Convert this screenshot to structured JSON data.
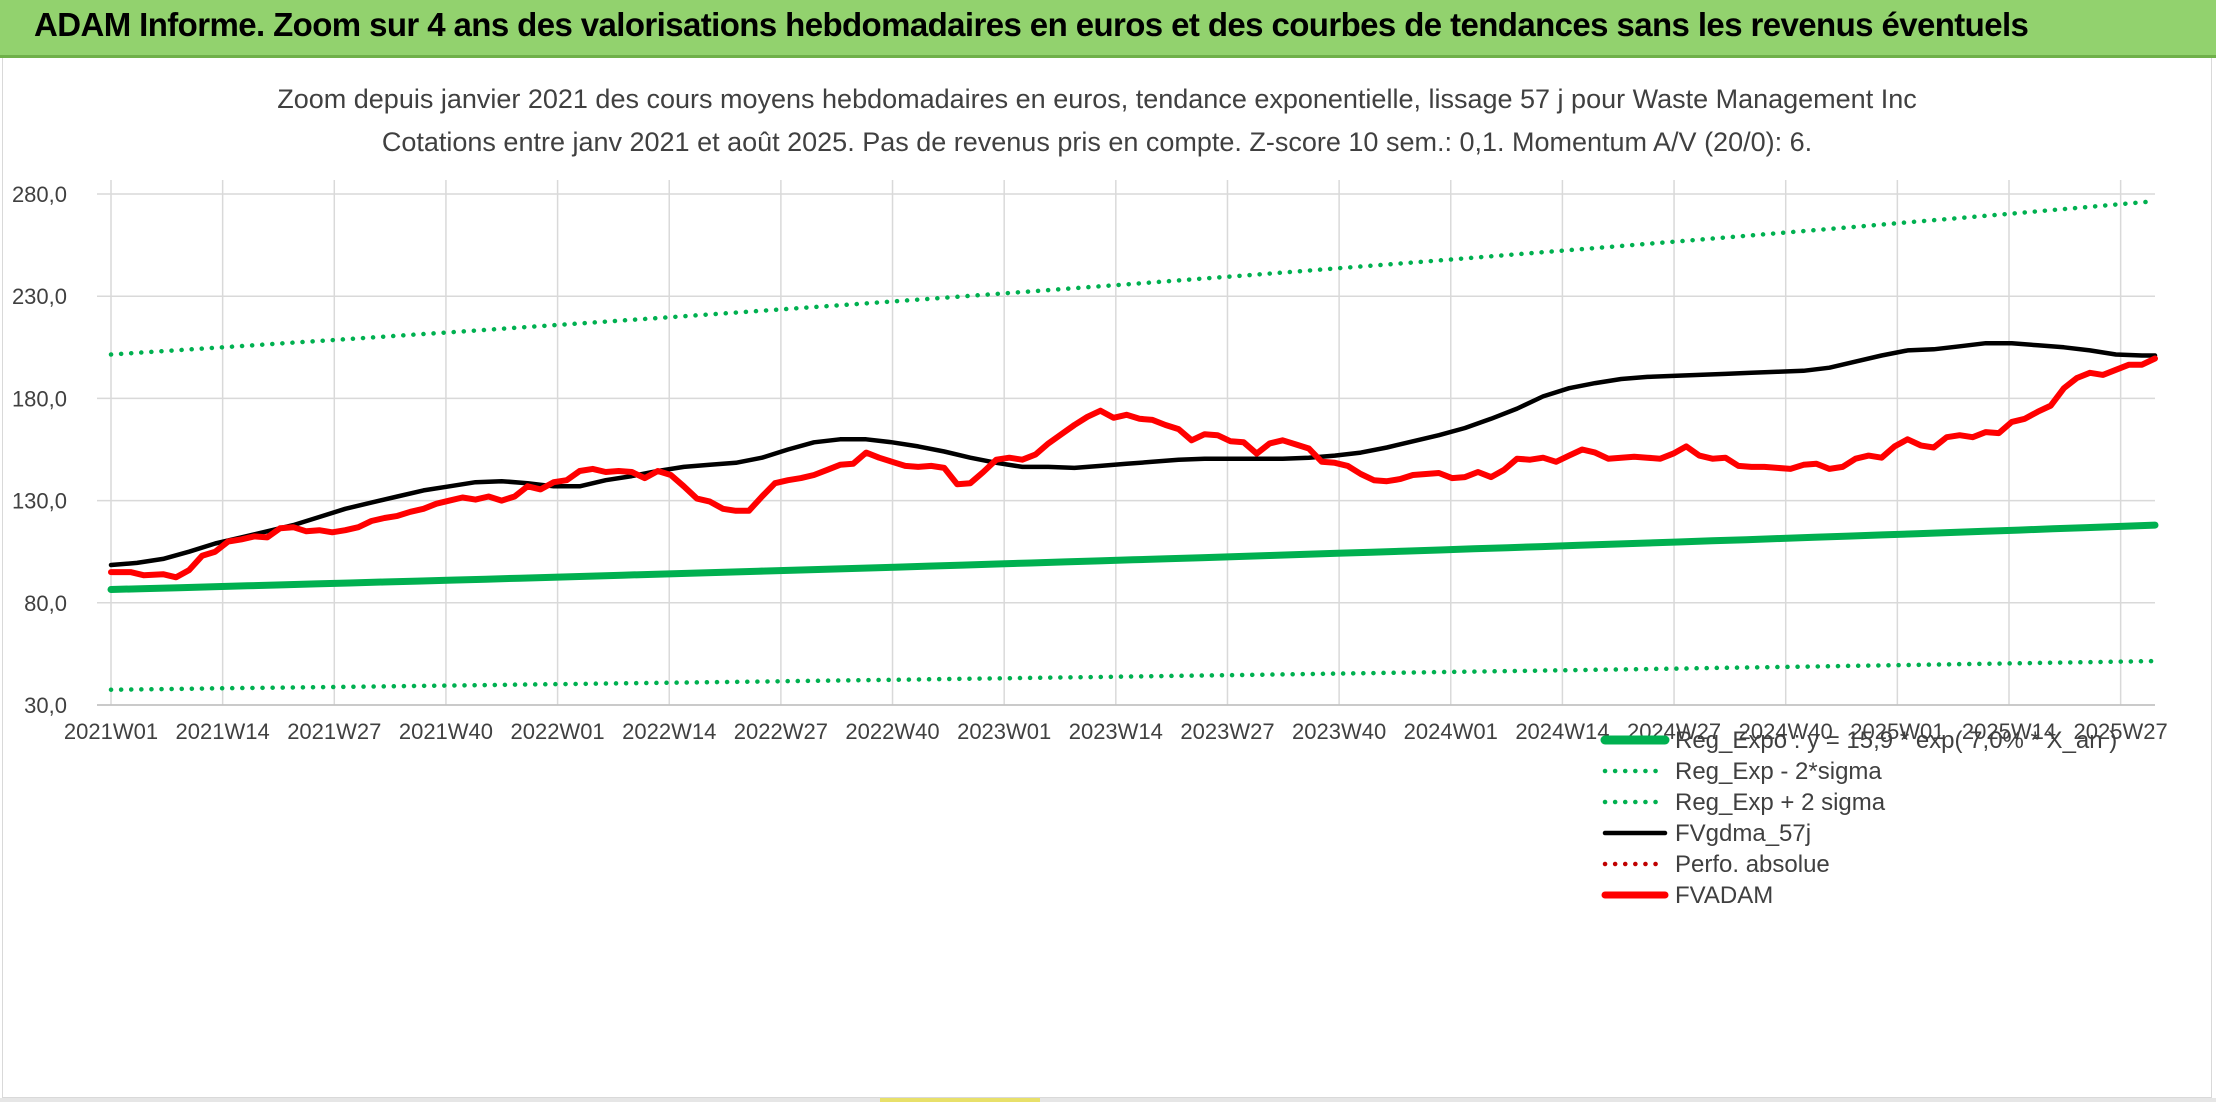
{
  "banner": {
    "title": "ADAM Informe. Zoom sur 4 ans des valorisations hebdomadaires en euros et des courbes de tendances sans les revenus éventuels",
    "color": "#92d26e"
  },
  "chart_data": {
    "type": "line",
    "title": "Zoom depuis janvier 2021 des cours moyens hebdomadaires en euros, tendance exponentielle, lissage 57 j pour Waste Management Inc",
    "subtitle": "Cotations entre janv 2021 et août 2025. Pas de revenus pris en compte. Z-score 10 sem.: 0,1. Momentum A/V (20/0): 6.",
    "xlabel": "",
    "ylabel": "",
    "ylim": [
      30,
      280
    ],
    "yticks": [
      "30,0",
      "80,0",
      "130,0",
      "180,0",
      "230,0",
      "280,0"
    ],
    "ytick_values": [
      30,
      80,
      130,
      180,
      230,
      280
    ],
    "xticks": [
      "2021W01",
      "2021W14",
      "2021W27",
      "2021W40",
      "2022W01",
      "2022W14",
      "2022W27",
      "2022W40",
      "2023W01",
      "2023W14",
      "2023W27",
      "2023W40",
      "2024W01",
      "2024W14",
      "2024W27",
      "2024W40",
      "2025W01",
      "2025W14",
      "2025W27"
    ],
    "xtick_index": [
      0,
      13,
      26,
      39,
      52,
      65,
      78,
      91,
      104,
      117,
      130,
      143,
      156,
      169,
      182,
      195,
      208,
      221,
      234
    ],
    "x_count": 239,
    "grid": true,
    "legend_position": "bottom-right",
    "series": [
      {
        "name": "Reg_Expo : y = 15,9 * exp( 7,0% *  X_an )",
        "style": "solid-thick",
        "color": "#00b050",
        "start": 86.5,
        "end": 118
      },
      {
        "name": "Reg_Exp - 2*sigma",
        "style": "dotted",
        "color": "#00b050",
        "start": 37.5,
        "end": 51.5
      },
      {
        "name": "Reg_Exp + 2 sigma",
        "style": "dotted",
        "color": "#00b050",
        "start": 201.5,
        "end": 276.5
      },
      {
        "name": "FVgdma_57j",
        "style": "solid",
        "color": "#000000",
        "points": [
          [
            0,
            98.5
          ],
          [
            4,
            99.5
          ],
          [
            8,
            101.5
          ],
          [
            12,
            105
          ],
          [
            16,
            109
          ],
          [
            20,
            112
          ],
          [
            24,
            115
          ],
          [
            28,
            118
          ],
          [
            32,
            122
          ],
          [
            36,
            126
          ],
          [
            40,
            129
          ],
          [
            44,
            132
          ],
          [
            48,
            135
          ],
          [
            52,
            137
          ],
          [
            56,
            139
          ],
          [
            60,
            139.5
          ],
          [
            64,
            138.5
          ],
          [
            68,
            137
          ],
          [
            72,
            137
          ],
          [
            76,
            140
          ],
          [
            80,
            142
          ],
          [
            84,
            144.5
          ],
          [
            88,
            146.5
          ],
          [
            92,
            147.5
          ],
          [
            96,
            148.5
          ],
          [
            100,
            151
          ],
          [
            104,
            155
          ],
          [
            108,
            158.5
          ],
          [
            112,
            160
          ],
          [
            116,
            160
          ],
          [
            120,
            158.5
          ],
          [
            124,
            156.5
          ],
          [
            128,
            154
          ],
          [
            132,
            151
          ],
          [
            136,
            148.5
          ],
          [
            140,
            146.5
          ],
          [
            144,
            146.5
          ],
          [
            148,
            146
          ],
          [
            152,
            147
          ],
          [
            156,
            148
          ],
          [
            160,
            149
          ],
          [
            164,
            150
          ],
          [
            168,
            150.5
          ],
          [
            172,
            150.5
          ],
          [
            176,
            150.5
          ],
          [
            180,
            150.5
          ],
          [
            184,
            151
          ],
          [
            188,
            152
          ],
          [
            192,
            153.5
          ],
          [
            196,
            156
          ],
          [
            200,
            159
          ],
          [
            204,
            162
          ],
          [
            208,
            165.5
          ],
          [
            212,
            170
          ],
          [
            216,
            175
          ],
          [
            220,
            181
          ],
          [
            224,
            185
          ],
          [
            228,
            187.5
          ],
          [
            232,
            189.5
          ],
          [
            236,
            190.5
          ],
          [
            240,
            191
          ],
          [
            244,
            191.5
          ],
          [
            248,
            192
          ],
          [
            252,
            192.5
          ],
          [
            256,
            193
          ],
          [
            260,
            193.5
          ],
          [
            264,
            195
          ],
          [
            268,
            198
          ],
          [
            272,
            201
          ],
          [
            276,
            203.5
          ],
          [
            280,
            204
          ],
          [
            284,
            205.5
          ],
          [
            288,
            207
          ],
          [
            292,
            207
          ],
          [
            296,
            206
          ],
          [
            300,
            205
          ],
          [
            304,
            203.5
          ],
          [
            308,
            201.5
          ],
          [
            312,
            201
          ],
          [
            314,
            201
          ]
        ]
      },
      {
        "name": "Perfo. absolue",
        "style": "dotted",
        "color": "#c00000"
      },
      {
        "name": "FVADAM",
        "style": "solid-thick",
        "color": "#ff0000",
        "points": [
          [
            0,
            95
          ],
          [
            3,
            95
          ],
          [
            5,
            93.5
          ],
          [
            8,
            94
          ],
          [
            10,
            92.5
          ],
          [
            12,
            96
          ],
          [
            14,
            103
          ],
          [
            16,
            105
          ],
          [
            18,
            110
          ],
          [
            20,
            111
          ],
          [
            22,
            112.5
          ],
          [
            24,
            112
          ],
          [
            26,
            116.5
          ],
          [
            28,
            117
          ],
          [
            30,
            115
          ],
          [
            32,
            115.5
          ],
          [
            34,
            114.5
          ],
          [
            36,
            115.5
          ],
          [
            38,
            117
          ],
          [
            40,
            120
          ],
          [
            42,
            121.5
          ],
          [
            44,
            122.5
          ],
          [
            46,
            124.5
          ],
          [
            48,
            126
          ],
          [
            50,
            128.5
          ],
          [
            52,
            130
          ],
          [
            54,
            131.5
          ],
          [
            56,
            130.5
          ],
          [
            58,
            132
          ],
          [
            60,
            130
          ],
          [
            62,
            132
          ],
          [
            64,
            137
          ],
          [
            66,
            135.5
          ],
          [
            68,
            139
          ],
          [
            70,
            140
          ],
          [
            72,
            144.5
          ],
          [
            74,
            145.5
          ],
          [
            76,
            144
          ],
          [
            78,
            144.5
          ],
          [
            80,
            144
          ],
          [
            82,
            141
          ],
          [
            84,
            144.5
          ],
          [
            86,
            142.5
          ],
          [
            88,
            137
          ],
          [
            90,
            131
          ],
          [
            92,
            129.5
          ],
          [
            94,
            126
          ],
          [
            96,
            125
          ],
          [
            98,
            125
          ],
          [
            100,
            132
          ],
          [
            102,
            138.5
          ],
          [
            104,
            140
          ],
          [
            106,
            141
          ],
          [
            108,
            142.5
          ],
          [
            110,
            145
          ],
          [
            112,
            147.5
          ],
          [
            114,
            148
          ],
          [
            116,
            153.5
          ],
          [
            118,
            151
          ],
          [
            120,
            149
          ],
          [
            122,
            147
          ],
          [
            124,
            146.5
          ],
          [
            126,
            147
          ],
          [
            128,
            146
          ],
          [
            130,
            138
          ],
          [
            132,
            138.5
          ],
          [
            134,
            144
          ],
          [
            136,
            150
          ],
          [
            138,
            151
          ],
          [
            140,
            150
          ],
          [
            142,
            152.5
          ],
          [
            144,
            158
          ],
          [
            146,
            162.5
          ],
          [
            148,
            167
          ],
          [
            150,
            171
          ],
          [
            152,
            174
          ],
          [
            154,
            170.5
          ],
          [
            156,
            172
          ],
          [
            158,
            170
          ],
          [
            160,
            169.5
          ],
          [
            162,
            167
          ],
          [
            164,
            165
          ],
          [
            166,
            159.5
          ],
          [
            168,
            162.5
          ],
          [
            170,
            162
          ],
          [
            172,
            159
          ],
          [
            174,
            158.5
          ],
          [
            176,
            153
          ],
          [
            178,
            158
          ],
          [
            180,
            159.5
          ],
          [
            182,
            157.5
          ],
          [
            184,
            155.5
          ],
          [
            186,
            149
          ],
          [
            188,
            148.5
          ],
          [
            190,
            147
          ],
          [
            192,
            143
          ],
          [
            194,
            140
          ],
          [
            196,
            139.5
          ],
          [
            198,
            140.5
          ],
          [
            200,
            142.5
          ],
          [
            202,
            143
          ],
          [
            204,
            143.5
          ],
          [
            206,
            141
          ],
          [
            208,
            141.5
          ],
          [
            210,
            144
          ],
          [
            212,
            141.5
          ],
          [
            214,
            145
          ],
          [
            216,
            150.5
          ],
          [
            218,
            150
          ],
          [
            220,
            151
          ],
          [
            222,
            149
          ],
          [
            224,
            152
          ],
          [
            226,
            155
          ],
          [
            228,
            153.5
          ],
          [
            230,
            150.5
          ],
          [
            232,
            151
          ],
          [
            234,
            151.5
          ],
          [
            236,
            151
          ],
          [
            238,
            150.5
          ],
          [
            240,
            153
          ],
          [
            242,
            156.5
          ],
          [
            244,
            152
          ],
          [
            246,
            150.5
          ],
          [
            248,
            151
          ],
          [
            250,
            147
          ],
          [
            252,
            146.5
          ],
          [
            254,
            146.5
          ],
          [
            256,
            146
          ],
          [
            258,
            145.5
          ],
          [
            260,
            147.5
          ],
          [
            262,
            148
          ],
          [
            264,
            145.5
          ],
          [
            266,
            146.5
          ],
          [
            268,
            150.5
          ],
          [
            270,
            152
          ],
          [
            272,
            151
          ],
          [
            274,
            156.5
          ],
          [
            276,
            160
          ],
          [
            278,
            157
          ],
          [
            280,
            156
          ],
          [
            282,
            161
          ],
          [
            284,
            162
          ],
          [
            286,
            161
          ],
          [
            288,
            163.5
          ],
          [
            290,
            163
          ],
          [
            292,
            168.5
          ],
          [
            294,
            170
          ],
          [
            296,
            173.5
          ],
          [
            298,
            176.5
          ],
          [
            300,
            185
          ],
          [
            302,
            190
          ],
          [
            304,
            192.5
          ],
          [
            306,
            191.5
          ],
          [
            308,
            194
          ],
          [
            310,
            196.5
          ],
          [
            312,
            196.5
          ],
          [
            314,
            199.5
          ]
        ]
      }
    ]
  },
  "legend": [
    {
      "label": "Reg_Expo : y = 15,9 * exp( 7,0% *  X_an )",
      "style": "solid-thick",
      "color": "#00b050"
    },
    {
      "label": "Reg_Exp - 2*sigma",
      "style": "dotted",
      "color": "#00b050"
    },
    {
      "label": "Reg_Exp + 2 sigma",
      "style": "dotted",
      "color": "#00b050"
    },
    {
      "label": "FVgdma_57j",
      "style": "solid",
      "color": "#000000"
    },
    {
      "label": "Perfo. absolue",
      "style": "dotted",
      "color": "#c00000"
    },
    {
      "label": "FVADAM",
      "style": "solid-thick",
      "color": "#ff0000"
    }
  ]
}
